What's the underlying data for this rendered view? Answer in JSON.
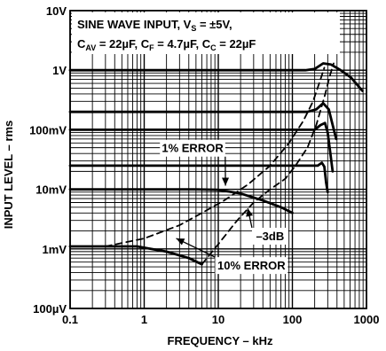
{
  "chart_data": {
    "type": "line",
    "xlabel": "FREQUENCY – kHz",
    "ylabel": "INPUT LEVEL – rms",
    "x_scale": "log",
    "y_scale": "log",
    "xlim": [
      0.1,
      1000
    ],
    "ylim_volts": [
      0.0001,
      10
    ],
    "grid": true,
    "x_ticks": [
      {
        "value": 0.1,
        "label": "0.1"
      },
      {
        "value": 1,
        "label": "1"
      },
      {
        "value": 10,
        "label": "10"
      },
      {
        "value": 100,
        "label": "100"
      },
      {
        "value": 1000,
        "label": "1000"
      }
    ],
    "y_ticks": [
      {
        "value": 0.0001,
        "label": "100µV"
      },
      {
        "value": 0.001,
        "label": "1mV"
      },
      {
        "value": 0.01,
        "label": "10mV"
      },
      {
        "value": 0.1,
        "label": "100mV"
      },
      {
        "value": 1,
        "label": "1V"
      },
      {
        "value": 10,
        "label": "10V"
      }
    ],
    "conditions": {
      "line1_text": "SINE WAVE INPUT, V",
      "line1_sub": "S",
      "line1_tail": " = ±5V,",
      "line2": [
        {
          "text": "C",
          "sub": "AV",
          "tail": " = 22µF, "
        },
        {
          "text": "C",
          "sub": "F",
          "tail": " = 4.7µF, "
        },
        {
          "text": "C",
          "sub": "C",
          "tail": " = 22µF"
        }
      ]
    },
    "series": [
      {
        "style": "solid",
        "points": [
          [
            0.1,
            1.0
          ],
          [
            50,
            1.0
          ],
          [
            150,
            1.0
          ],
          [
            200,
            1.05
          ],
          [
            260,
            1.3
          ],
          [
            330,
            1.25
          ],
          [
            450,
            1.0
          ],
          [
            620,
            0.75
          ],
          [
            880,
            0.45
          ]
        ]
      },
      {
        "style": "solid",
        "points": [
          [
            0.1,
            0.2
          ],
          [
            100,
            0.2
          ],
          [
            160,
            0.2
          ],
          [
            210,
            0.22
          ],
          [
            260,
            0.28
          ],
          [
            310,
            0.22
          ],
          [
            350,
            0.12
          ],
          [
            390,
            0.07
          ]
        ]
      },
      {
        "style": "solid",
        "points": [
          [
            0.1,
            0.1
          ],
          [
            120,
            0.1
          ],
          [
            200,
            0.1
          ],
          [
            240,
            0.12
          ],
          [
            275,
            0.13
          ],
          [
            300,
            0.09
          ],
          [
            330,
            0.035
          ],
          [
            350,
            0.02
          ]
        ]
      },
      {
        "style": "solid",
        "points": [
          [
            0.1,
            0.025
          ],
          [
            150,
            0.025
          ],
          [
            220,
            0.025
          ],
          [
            250,
            0.028
          ],
          [
            270,
            0.024
          ],
          [
            285,
            0.013
          ],
          [
            300,
            0.009
          ]
        ]
      },
      {
        "style": "solid",
        "points": [
          [
            0.1,
            0.01
          ],
          [
            5,
            0.01
          ],
          [
            10,
            0.0098
          ],
          [
            20,
            0.0085
          ],
          [
            40,
            0.0065
          ],
          [
            70,
            0.005
          ],
          [
            100,
            0.004
          ]
        ]
      },
      {
        "style": "solid",
        "points": [
          [
            0.1,
            0.0011
          ],
          [
            0.8,
            0.0011
          ],
          [
            2,
            0.0009
          ],
          [
            4,
            0.0007
          ],
          [
            6,
            0.00055
          ]
        ]
      },
      {
        "style": "dashed",
        "points": [
          [
            0.3,
            0.0011
          ],
          [
            1,
            0.0015
          ],
          [
            3,
            0.0025
          ],
          [
            6,
            0.004
          ],
          [
            12,
            0.0065
          ],
          [
            25,
            0.012
          ],
          [
            50,
            0.025
          ],
          [
            90,
            0.06
          ],
          [
            140,
            0.14
          ],
          [
            190,
            0.3
          ],
          [
            230,
            0.6
          ],
          [
            270,
            1.1
          ]
        ]
      },
      {
        "style": "dashed",
        "points": [
          [
            6,
            0.00055
          ],
          [
            10,
            0.0012
          ],
          [
            18,
            0.003
          ],
          [
            30,
            0.006
          ],
          [
            50,
            0.01
          ],
          [
            80,
            0.015
          ],
          [
            110,
            0.025
          ],
          [
            160,
            0.05
          ],
          [
            210,
            0.12
          ],
          [
            270,
            0.35
          ],
          [
            320,
            0.8
          ],
          [
            360,
            1.3
          ]
        ]
      }
    ],
    "annotations": [
      {
        "text": "1% ERROR",
        "x": 4.5,
        "y": 0.042,
        "arrow_to": [
          12.5,
          0.0115
        ]
      },
      {
        "text": "–3dB",
        "x": 50,
        "y": 0.0014,
        "arrow_to": [
          25,
          0.0048
        ]
      },
      {
        "text": "10% ERROR",
        "x": 28,
        "y": 0.00045,
        "arrow_to": [
          2.7,
          0.0015
        ]
      }
    ]
  }
}
